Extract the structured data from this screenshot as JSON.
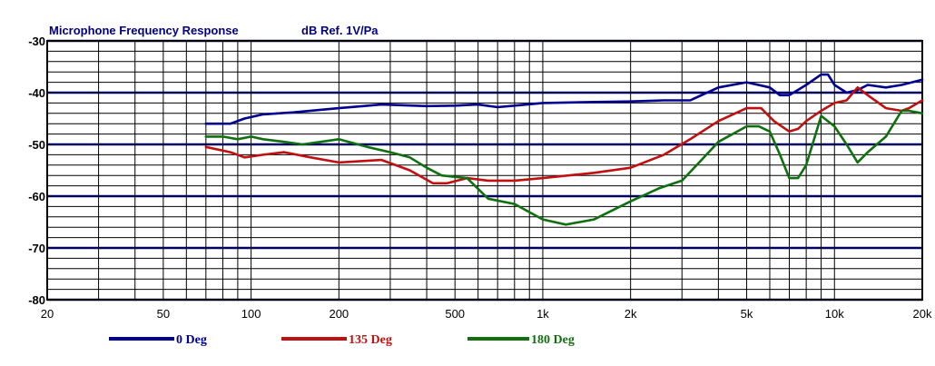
{
  "chart_data": {
    "type": "line",
    "title": "Microphone Frequency Response",
    "ylabel": "dB Ref. 1V/Pa",
    "xscale": "log",
    "xlim": [
      20,
      20000
    ],
    "ylim": [
      -80,
      -30
    ],
    "y_major_ticks": [
      -30,
      -40,
      -50,
      -60,
      -70,
      -80
    ],
    "y_minor_step": 2,
    "x_ticks": [
      {
        "value": 20,
        "label": "20"
      },
      {
        "value": 50,
        "label": "50"
      },
      {
        "value": 100,
        "label": "100"
      },
      {
        "value": 200,
        "label": "200"
      },
      {
        "value": 500,
        "label": "500"
      },
      {
        "value": 1000,
        "label": "1k"
      },
      {
        "value": 2000,
        "label": "2k"
      },
      {
        "value": 5000,
        "label": "5k"
      },
      {
        "value": 10000,
        "label": "10k"
      },
      {
        "value": 20000,
        "label": "20k"
      }
    ],
    "series": [
      {
        "name": "0 Deg",
        "color": "#000090",
        "x": [
          70,
          85,
          95,
          110,
          140,
          200,
          280,
          400,
          500,
          600,
          700,
          800,
          1000,
          1500,
          2000,
          2600,
          3200,
          4000,
          5000,
          6000,
          6500,
          7000,
          8000,
          9000,
          9500,
          10000,
          11000,
          12000,
          13000,
          15000,
          17000,
          20000
        ],
        "y": [
          -46.0,
          -46.0,
          -45.0,
          -44.2,
          -43.8,
          -43.0,
          -42.3,
          -42.6,
          -42.5,
          -42.3,
          -42.8,
          -42.5,
          -42.0,
          -41.8,
          -41.7,
          -41.5,
          -41.5,
          -39.0,
          -38.0,
          -39.0,
          -40.5,
          -40.5,
          -38.5,
          -36.5,
          -36.5,
          -38.5,
          -40.0,
          -39.5,
          -38.5,
          -39.0,
          -38.5,
          -37.5
        ]
      },
      {
        "name": "135 Deg",
        "color": "#c01010",
        "x": [
          70,
          85,
          95,
          110,
          130,
          160,
          200,
          280,
          350,
          420,
          470,
          550,
          650,
          800,
          1000,
          1500,
          2000,
          2600,
          3200,
          4000,
          5000,
          5600,
          6200,
          7000,
          7500,
          8000,
          9000,
          10000,
          11000,
          12000,
          13000,
          15000,
          17000,
          18000,
          20000
        ],
        "y": [
          -50.5,
          -51.5,
          -52.5,
          -52.0,
          -51.5,
          -52.5,
          -53.5,
          -53.0,
          -55.0,
          -57.5,
          -57.5,
          -56.5,
          -57.0,
          -57.0,
          -56.5,
          -55.5,
          -54.5,
          -52.0,
          -49.0,
          -45.5,
          -43.0,
          -43.0,
          -45.5,
          -47.5,
          -47.0,
          -45.5,
          -43.5,
          -42.0,
          -41.5,
          -39.0,
          -40.5,
          -43.0,
          -43.5,
          -43.0,
          -41.5
        ]
      },
      {
        "name": "180 Deg",
        "color": "#107010",
        "x": [
          70,
          80,
          90,
          100,
          110,
          130,
          150,
          200,
          250,
          300,
          350,
          400,
          450,
          550,
          650,
          800,
          1000,
          1200,
          1500,
          2000,
          2500,
          3000,
          3500,
          4000,
          5000,
          5500,
          6000,
          6500,
          7000,
          7500,
          8000,
          9000,
          10000,
          11000,
          12000,
          13000,
          15000,
          17000,
          18000,
          20000
        ],
        "y": [
          -48.5,
          -48.5,
          -49.0,
          -48.5,
          -49.0,
          -49.5,
          -50.0,
          -49.0,
          -50.5,
          -51.5,
          -52.5,
          -54.5,
          -56.0,
          -56.5,
          -60.5,
          -61.5,
          -64.5,
          -65.5,
          -64.5,
          -61.0,
          -58.5,
          -57.0,
          -53.0,
          -49.5,
          -46.5,
          -46.5,
          -47.5,
          -52.0,
          -56.5,
          -56.5,
          -54.0,
          -44.5,
          -46.5,
          -50.0,
          -53.5,
          -51.5,
          -48.5,
          -43.5,
          -43.5,
          -44.0
        ]
      }
    ]
  }
}
